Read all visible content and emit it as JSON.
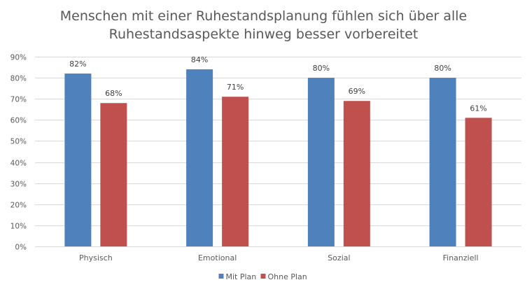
{
  "chart_data": {
    "type": "bar",
    "title": "Menschen mit einer Ruhestandsplanung fühlen sich über alle Ruhestandsaspekte hinweg besser vorbereitet",
    "title_lines": [
      "Menschen mit einer Ruhestandsplanung fühlen sich über alle",
      "Ruhestandsaspekte hinweg besser vorbereitet"
    ],
    "categories": [
      "Physisch",
      "Emotional",
      "Sozial",
      "Finanziell"
    ],
    "series": [
      {
        "name": "Mit Plan",
        "color": "#4f81bd",
        "values": [
          82,
          84,
          80,
          80
        ],
        "labels": [
          "82%",
          "84%",
          "80%",
          "80%"
        ]
      },
      {
        "name": "Ohne Plan",
        "color": "#c0504d",
        "values": [
          68,
          71,
          69,
          61
        ],
        "labels": [
          "68%",
          "71%",
          "69%",
          "61%"
        ]
      }
    ],
    "y_ticks": [
      0,
      10,
      20,
      30,
      40,
      50,
      60,
      70,
      80,
      90
    ],
    "y_tick_labels": [
      "0%",
      "10%",
      "20%",
      "30%",
      "40%",
      "50%",
      "60%",
      "70%",
      "80%",
      "90%"
    ],
    "ylim": [
      0,
      90
    ],
    "xlabel": "",
    "ylabel": "",
    "grid": true,
    "legend_position": "bottom-center"
  }
}
